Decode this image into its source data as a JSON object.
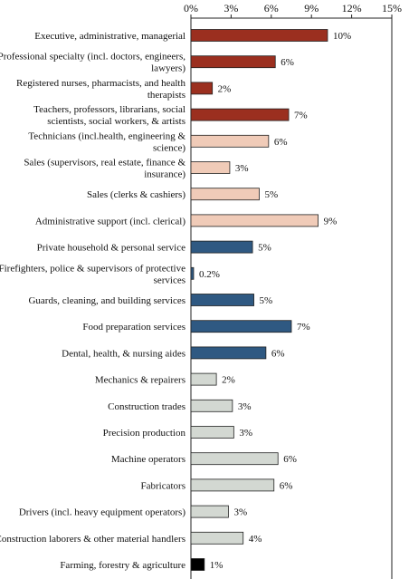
{
  "chart_data": {
    "type": "bar",
    "orientation": "horizontal",
    "title": "",
    "xlabel": "",
    "ylabel": "",
    "xlim": [
      0,
      15
    ],
    "x_ticks": [
      "0%",
      "3%",
      "6%",
      "9%",
      "12%",
      "15%"
    ],
    "x_tick_values": [
      0,
      3,
      6,
      9,
      12,
      15
    ],
    "grid": false,
    "legend": "none",
    "categories": [
      [
        "Executive, administrative, managerial"
      ],
      [
        "Professional specialty (incl. doctors, engineers,",
        "lawyers)"
      ],
      [
        "Registered nurses, pharmacists, and health",
        "therapists"
      ],
      [
        "Teachers, professors, librarians, social",
        "scientists, social workers, & artists"
      ],
      [
        "Technicians (incl.health, engineering &",
        "science)"
      ],
      [
        "Sales (supervisors, real estate, finance &",
        "insurance)"
      ],
      [
        "Sales (clerks & cashiers)"
      ],
      [
        "Administrative support (incl. clerical)"
      ],
      [
        "Private household & personal service"
      ],
      [
        "Firefighters, police & supervisors of protective",
        "services"
      ],
      [
        "Guards, cleaning, and building services"
      ],
      [
        "Food preparation services"
      ],
      [
        "Dental, health, & nursing aides"
      ],
      [
        "Mechanics & repairers"
      ],
      [
        "Construction trades"
      ],
      [
        "Precision production"
      ],
      [
        "Machine operators"
      ],
      [
        "Fabricators"
      ],
      [
        "Drivers (incl. heavy equipment operators)"
      ],
      [
        "Construction laborers & other material handlers"
      ],
      [
        "Farming, forestry & agriculture"
      ]
    ],
    "values": [
      10.2,
      6.3,
      1.6,
      7.3,
      5.8,
      2.9,
      5.1,
      9.5,
      4.6,
      0.2,
      4.7,
      7.5,
      5.6,
      1.9,
      3.1,
      3.2,
      6.5,
      6.2,
      2.8,
      3.9,
      1.0
    ],
    "data_labels": [
      "10%",
      "6%",
      "2%",
      "7%",
      "6%",
      "3%",
      "5%",
      "9%",
      "5%",
      "0.2%",
      "5%",
      "7%",
      "6%",
      "2%",
      "3%",
      "3%",
      "6%",
      "6%",
      "3%",
      "4%",
      "1%"
    ],
    "bar_colors": [
      "#9b2f1f",
      "#9b2f1f",
      "#9b2f1f",
      "#9b2f1f",
      "#f0cbb8",
      "#f0cbb8",
      "#f0cbb8",
      "#f0cbb8",
      "#2f5982",
      "#2f5982",
      "#2f5982",
      "#2f5982",
      "#2f5982",
      "#d3d8d2",
      "#d3d8d2",
      "#d3d8d2",
      "#d3d8d2",
      "#d3d8d2",
      "#d3d8d2",
      "#d3d8d2",
      "#000000"
    ],
    "bar_border_color": "#222222"
  }
}
